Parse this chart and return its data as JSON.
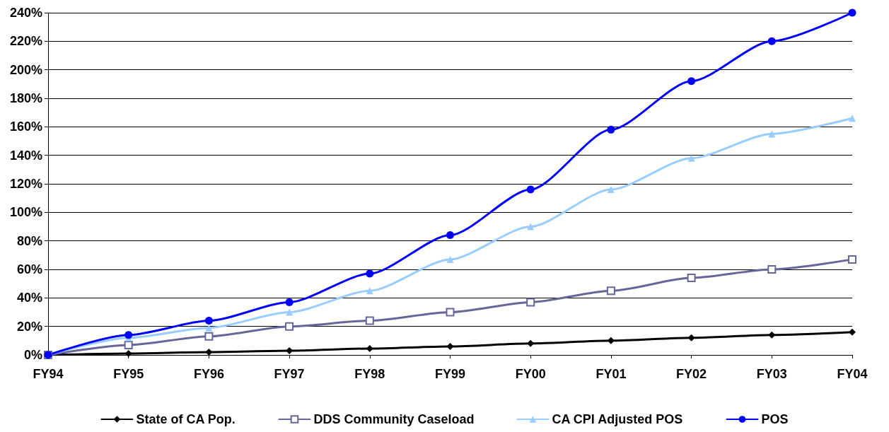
{
  "chart_data": {
    "type": "line",
    "categories": [
      "FY94",
      "FY95",
      "FY96",
      "FY97",
      "FY98",
      "FY99",
      "FY00",
      "FY01",
      "FY02",
      "FY03",
      "FY04"
    ],
    "ylim": [
      0,
      240
    ],
    "yticks": [
      {
        "value": 0,
        "label": "0%"
      },
      {
        "value": 20,
        "label": "20%"
      },
      {
        "value": 40,
        "label": "40%"
      },
      {
        "value": 60,
        "label": "60%"
      },
      {
        "value": 80,
        "label": "80%"
      },
      {
        "value": 100,
        "label": "100%"
      },
      {
        "value": 120,
        "label": "120%"
      },
      {
        "value": 140,
        "label": "140%"
      },
      {
        "value": 160,
        "label": "160%"
      },
      {
        "value": 180,
        "label": "180%"
      },
      {
        "value": 200,
        "label": "200%"
      },
      {
        "value": 220,
        "label": "220%"
      },
      {
        "value": 240,
        "label": "240%"
      }
    ],
    "grid": "y",
    "legend": "bottom",
    "line_style": "solid",
    "series": [
      {
        "name": "State of CA Pop.",
        "color": "#000000",
        "marker": "diamond",
        "values": [
          0,
          1,
          2,
          3,
          4.5,
          6,
          8,
          10,
          12,
          14,
          16
        ]
      },
      {
        "name": "DDS Community Caseload",
        "color": "#666699",
        "marker": "square",
        "values": [
          0,
          7,
          13,
          20,
          24,
          30,
          37,
          45,
          54,
          60,
          67
        ]
      },
      {
        "name": "CA CPI Adjusted POS",
        "color": "#99ccff",
        "marker": "triangle",
        "values": [
          0,
          12,
          19,
          30,
          45,
          67,
          90,
          116,
          138,
          155,
          166
        ]
      },
      {
        "name": "POS",
        "color": "#0000ff",
        "marker": "circle",
        "values": [
          0,
          14,
          24,
          37,
          57,
          84,
          116,
          158,
          192,
          220,
          240
        ]
      }
    ]
  }
}
